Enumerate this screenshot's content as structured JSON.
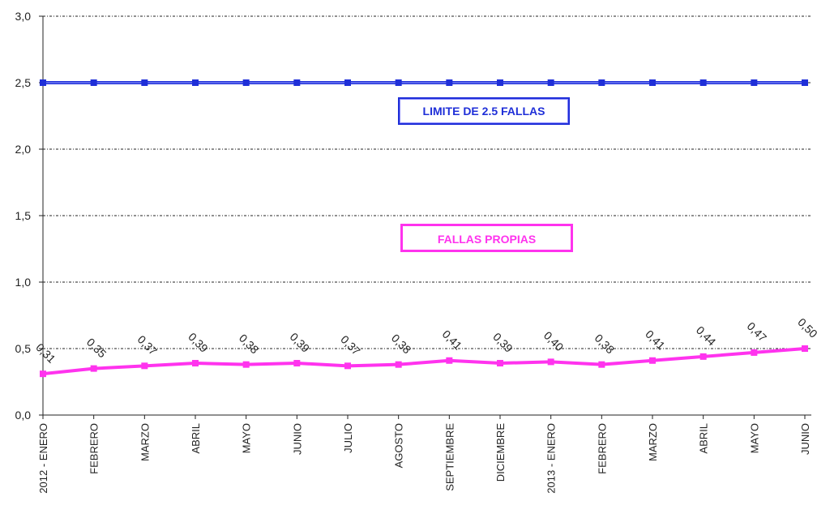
{
  "chart_data": {
    "type": "line",
    "categories": [
      "2012 - ENERO",
      "FEBRERO",
      "MARZO",
      "ABRIL",
      "MAYO",
      "JUNIO",
      "JULIO",
      "AGOSTO",
      "SEPTIEMBRE",
      "DICIEMBRE",
      "2013 - ENERO",
      "FEBRERO",
      "MARZO",
      "ABRIL",
      "MAYO",
      "JUNIO"
    ],
    "yticks": [
      "0,0",
      "0,5",
      "1,0",
      "1,5",
      "2,0",
      "2,5",
      "3,0"
    ],
    "ylim": [
      0,
      3
    ],
    "grid": true,
    "series": [
      {
        "name": "LIMITE DE 2.5 FALLAS",
        "color": "#1f2fd8",
        "values": [
          2.5,
          2.5,
          2.5,
          2.5,
          2.5,
          2.5,
          2.5,
          2.5,
          2.5,
          2.5,
          2.5,
          2.5,
          2.5,
          2.5,
          2.5,
          2.5
        ]
      },
      {
        "name": "FALLAS PROPIAS",
        "color": "#ff33ee",
        "values": [
          0.31,
          0.35,
          0.37,
          0.39,
          0.38,
          0.39,
          0.37,
          0.38,
          0.41,
          0.39,
          0.4,
          0.38,
          0.41,
          0.44,
          0.47,
          0.5
        ],
        "labels": [
          "0,31",
          "0,35",
          "0,37",
          "0,39",
          "0,38",
          "0,39",
          "0,37",
          "0,38",
          "0,41",
          "0,39",
          "0,40",
          "0,38",
          "0,41",
          "0,44",
          "0,47",
          "0,50"
        ]
      }
    ]
  }
}
